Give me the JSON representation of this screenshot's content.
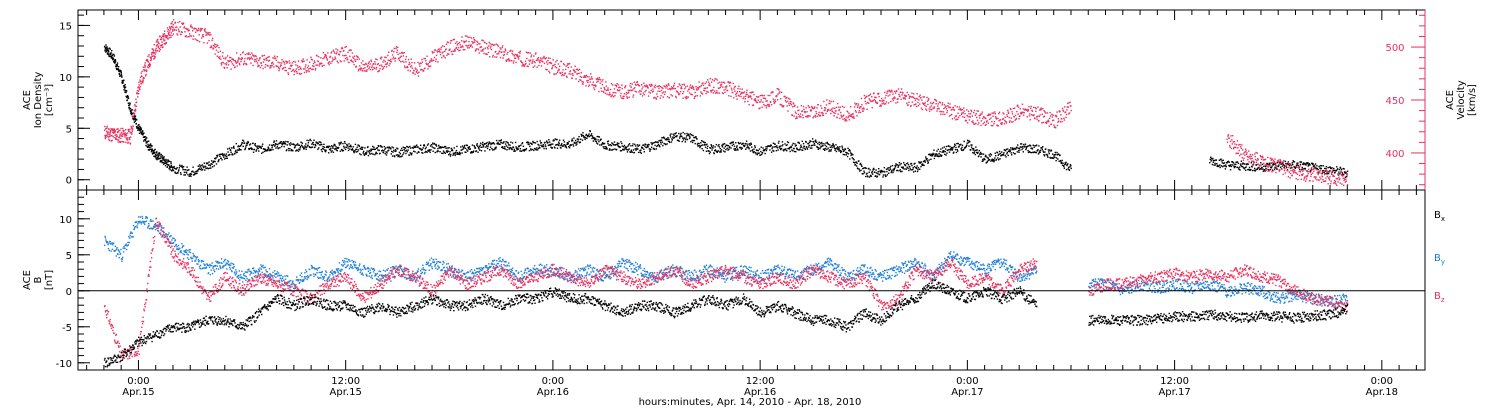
{
  "chart_data": [
    {
      "type": "scatter",
      "panel": "top",
      "left_axis_label": [
        "ACE",
        "Ion Density",
        "[cm⁻³]"
      ],
      "right_axis_label": [
        "ACE",
        "Velocity",
        "[km/s]"
      ],
      "ylim_left": [
        -1,
        16.5
      ],
      "ylim_right": [
        365,
        535
      ],
      "left_ticks": [
        "0",
        "5",
        "10",
        "15"
      ],
      "right_ticks": [
        "400",
        "450",
        "500"
      ],
      "series": [
        {
          "axis": "left",
          "color": "#000000",
          "x": [
            -2,
            -1.5,
            -1,
            -0.5,
            0,
            0.5,
            1,
            1.5,
            2,
            3,
            4,
            5,
            6,
            7,
            8,
            9,
            10,
            11,
            12,
            13,
            14,
            15,
            16,
            17,
            18,
            19,
            20,
            21,
            22,
            23,
            24,
            25,
            26,
            27,
            28,
            29,
            30,
            31,
            32,
            33,
            34,
            35,
            36,
            37,
            38,
            39,
            40,
            41,
            42,
            43,
            44,
            45,
            46,
            47,
            48,
            49,
            50,
            51,
            52,
            53,
            54,
            55,
            56,
            57,
            58,
            59,
            60,
            61,
            62,
            63,
            64,
            65,
            66,
            67,
            68,
            69,
            70
          ],
          "y": [
            13,
            12,
            10,
            7,
            5,
            3.5,
            2.5,
            1.8,
            1.2,
            0.8,
            1.5,
            2.5,
            3.5,
            3,
            3.5,
            3.2,
            3.6,
            3,
            3.4,
            2.8,
            3,
            2.7,
            3,
            3.2,
            2.8,
            3,
            3.3,
            3.5,
            3.2,
            3.4,
            3.6,
            3.5,
            4.5,
            3.4,
            3.3,
            3,
            3.5,
            4.3,
            4.1,
            3,
            3.2,
            3.5,
            2.8,
            3.4,
            3.2,
            3.6,
            3.2,
            2.8,
            0.8,
            0.7,
            1.3,
            1.2,
            2.5,
            3,
            3.5,
            2,
            2.5,
            3.2,
            3,
            2.5,
            1,
            null,
            null,
            null,
            null,
            null,
            null,
            null,
            2,
            1.5,
            1.4,
            1.3,
            1.4,
            1.5,
            1.2,
            1,
            0.7
          ]
        },
        {
          "axis": "right",
          "color": "#e8315f",
          "x": [
            -2,
            -1.5,
            -1,
            -0.5,
            0,
            0.5,
            1,
            1.5,
            2,
            3,
            4,
            5,
            6,
            7,
            8,
            9,
            10,
            11,
            12,
            13,
            14,
            15,
            16,
            17,
            18,
            19,
            20,
            21,
            22,
            23,
            24,
            25,
            26,
            27,
            28,
            29,
            30,
            31,
            32,
            33,
            34,
            35,
            36,
            37,
            38,
            39,
            40,
            41,
            42,
            43,
            44,
            45,
            46,
            47,
            48,
            49,
            50,
            51,
            52,
            53,
            54,
            55,
            56,
            57,
            58,
            59,
            60,
            61,
            62,
            63,
            64,
            65,
            66,
            67,
            68,
            69,
            70
          ],
          "y": [
            420,
            418,
            417,
            416,
            465,
            485,
            500,
            510,
            520,
            515,
            510,
            485,
            490,
            487,
            485,
            480,
            485,
            490,
            495,
            480,
            485,
            495,
            478,
            490,
            500,
            505,
            500,
            495,
            490,
            488,
            482,
            478,
            470,
            462,
            458,
            462,
            458,
            460,
            458,
            465,
            462,
            455,
            448,
            455,
            440,
            438,
            445,
            435,
            448,
            452,
            455,
            450,
            445,
            440,
            435,
            433,
            432,
            440,
            438,
            430,
            445,
            null,
            null,
            null,
            null,
            null,
            null,
            null,
            null,
            415,
            400,
            392,
            388,
            382,
            380,
            378,
            375
          ]
        }
      ]
    },
    {
      "type": "scatter",
      "panel": "bottom",
      "ylabel": [
        "ACE",
        "B",
        "[nT]"
      ],
      "ylim": [
        -11,
        14
      ],
      "ticks": [
        "-10",
        "-5",
        "0",
        "5",
        "10"
      ],
      "legend_placement": "right",
      "legend": [
        "B",
        "B",
        "B"
      ],
      "legend_subscripts": [
        "x",
        "y",
        "z"
      ],
      "x_ticks": [
        "0:00",
        "12:00",
        "0:00",
        "12:00",
        "0:00",
        "12:00",
        "0:00"
      ],
      "x_dates": [
        "Apr.15",
        "Apr.15",
        "Apr.16",
        "Apr.16",
        "Apr.17",
        "Apr.17",
        "Apr.18"
      ],
      "xlabel": "hours:minutes, Apr. 14, 2010 - Apr. 18, 2010",
      "series": [
        {
          "name": "Bx",
          "color": "#000000",
          "x": [
            -2,
            -1,
            0,
            1,
            2,
            3,
            4,
            5,
            6,
            7,
            8,
            9,
            10,
            11,
            12,
            13,
            14,
            15,
            16,
            17,
            18,
            19,
            20,
            21,
            22,
            23,
            24,
            25,
            26,
            27,
            28,
            29,
            30,
            31,
            32,
            33,
            34,
            35,
            36,
            37,
            38,
            39,
            40,
            41,
            42,
            43,
            44,
            45,
            46,
            47,
            48,
            49,
            50,
            51,
            52,
            53,
            54,
            55,
            56,
            57,
            58,
            59,
            60,
            61,
            62,
            63,
            64,
            65,
            66,
            67,
            68,
            69,
            70
          ],
          "y": [
            -10,
            -9,
            -7,
            -6,
            -5,
            -5,
            -4,
            -4,
            -5,
            -3,
            -1,
            -2,
            -1,
            -2,
            -2,
            -3,
            -2,
            -3,
            -2,
            -1,
            -2,
            -2,
            -1,
            -2,
            -1,
            -1,
            0,
            -1,
            -1,
            -2,
            -3,
            -2,
            -2,
            -3,
            -2,
            -1,
            -2,
            -1,
            -3,
            -2,
            -3,
            -4,
            -4,
            -5,
            -3,
            -4,
            -2,
            -1,
            1,
            0,
            -1,
            0,
            -1,
            0,
            -2,
            null,
            null,
            -4,
            -4,
            -4,
            -4,
            -3.8,
            -3.5,
            -3.5,
            -3.2,
            -3.5,
            -3.6,
            -3.4,
            -3.5,
            -3.7,
            -3.4,
            -3.2,
            -2.5
          ]
        },
        {
          "name": "By",
          "color": "#1f7fd8",
          "x": [
            -2,
            -1,
            0,
            1,
            2,
            3,
            4,
            5,
            6,
            7,
            8,
            9,
            10,
            11,
            12,
            13,
            14,
            15,
            16,
            17,
            18,
            19,
            20,
            21,
            22,
            23,
            24,
            25,
            26,
            27,
            28,
            29,
            30,
            31,
            32,
            33,
            34,
            35,
            36,
            37,
            38,
            39,
            40,
            41,
            42,
            43,
            44,
            45,
            46,
            47,
            48,
            49,
            50,
            51,
            52,
            53,
            54,
            55,
            56,
            57,
            58,
            59,
            60,
            61,
            62,
            63,
            64,
            65,
            66,
            67,
            68,
            69,
            70
          ],
          "y": [
            7,
            5,
            10,
            9,
            7,
            5,
            3,
            4,
            2,
            3,
            2,
            1,
            3,
            2,
            4,
            3,
            2,
            3,
            2,
            4,
            3,
            2,
            3,
            4,
            2,
            3,
            3,
            2,
            3,
            2,
            4,
            3,
            2,
            3,
            2,
            3,
            2,
            3,
            2,
            3,
            2,
            3,
            4,
            2,
            3,
            2,
            3,
            4,
            2,
            5,
            4,
            3,
            4,
            2,
            3,
            null,
            null,
            1,
            1,
            0,
            1,
            0.5,
            1,
            0.5,
            1,
            0,
            0.5,
            0,
            -1,
            -0.5,
            -1,
            -1.5,
            -1
          ]
        },
        {
          "name": "Bz",
          "color": "#e8315f",
          "x": [
            -2,
            -1,
            0,
            1,
            2,
            3,
            4,
            5,
            6,
            7,
            8,
            9,
            10,
            11,
            12,
            13,
            14,
            15,
            16,
            17,
            18,
            19,
            20,
            21,
            22,
            23,
            24,
            25,
            26,
            27,
            28,
            29,
            30,
            31,
            32,
            33,
            34,
            35,
            36,
            37,
            38,
            39,
            40,
            41,
            42,
            43,
            44,
            45,
            46,
            47,
            48,
            49,
            50,
            51,
            52,
            53,
            54,
            55,
            56,
            57,
            58,
            59,
            60,
            61,
            62,
            63,
            64,
            65,
            66,
            67,
            68,
            69,
            70
          ],
          "y": [
            -2,
            -9,
            -8,
            10,
            5,
            3,
            -1,
            2,
            0,
            2,
            1,
            0,
            -1,
            1,
            2,
            -1,
            1,
            3,
            2,
            0,
            3,
            1,
            2,
            3,
            1,
            2,
            3,
            2,
            1,
            3,
            2,
            1,
            2,
            3,
            1,
            2,
            3,
            2,
            1,
            2,
            1,
            3,
            2,
            1,
            2,
            -2,
            -1,
            3,
            2,
            4,
            1,
            2,
            0,
            3,
            4,
            null,
            null,
            0,
            1,
            1,
            1.5,
            2,
            2.5,
            2,
            2.5,
            2,
            3,
            2,
            1.5,
            0,
            -1,
            -1.5,
            -2
          ]
        }
      ]
    }
  ]
}
